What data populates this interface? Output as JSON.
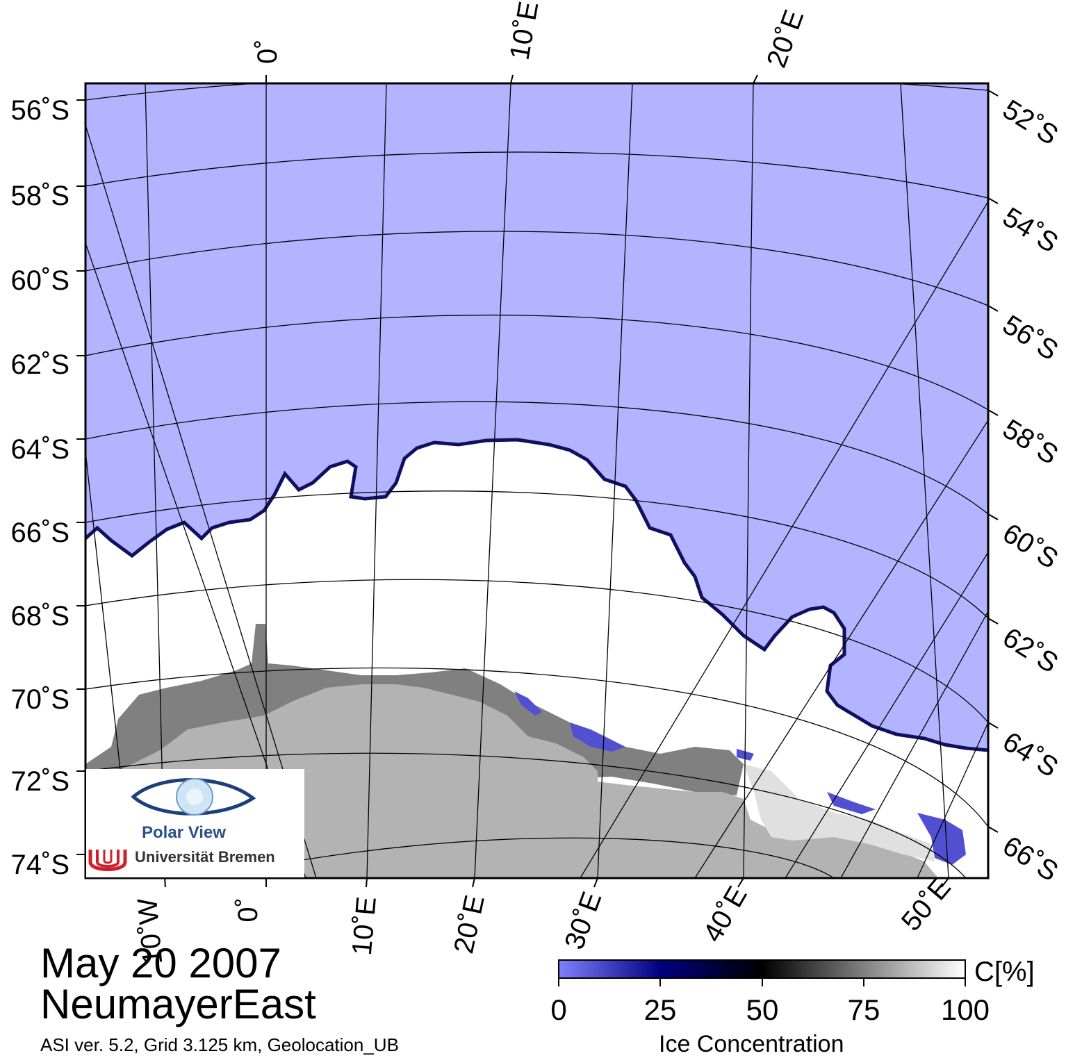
{
  "map": {
    "date": "May 20 2007",
    "region": "NeumayerEast",
    "footnote": "ASI ver. 5.2,  Grid 3.125 km, Geolocation_UB",
    "colors": {
      "ocean": "#b3b3ff",
      "sea_ice": "#ffffff",
      "ice_shelf": "#808080",
      "land": "#b3b3b3",
      "graticule": "#000000"
    },
    "left_lat_labels": [
      "56˚S",
      "58˚S",
      "60˚S",
      "62˚S",
      "64˚S",
      "66˚S",
      "68˚S",
      "70˚S",
      "72˚S",
      "74˚S"
    ],
    "right_lat_labels": [
      "52˚S",
      "54˚S",
      "56˚S",
      "58˚S",
      "60˚S",
      "62˚S",
      "64˚S",
      "66˚S"
    ],
    "top_lon_labels": [
      "0˚",
      "10˚E",
      "20˚E"
    ],
    "bottom_lon_labels": [
      "10˚W",
      "0˚",
      "10˚E",
      "20˚E",
      "30˚E",
      "40˚E",
      "50˚E"
    ]
  },
  "logo": {
    "line1": "Polar View",
    "line2": "Universität Bremen"
  },
  "colorbar": {
    "title": "Ice Concentration",
    "unit": "C[%]",
    "ticks": [
      "0",
      "25",
      "50",
      "75",
      "100"
    ],
    "stops": [
      "#8080ff",
      "#000080",
      "#000000",
      "#808080",
      "#ffffff"
    ]
  }
}
